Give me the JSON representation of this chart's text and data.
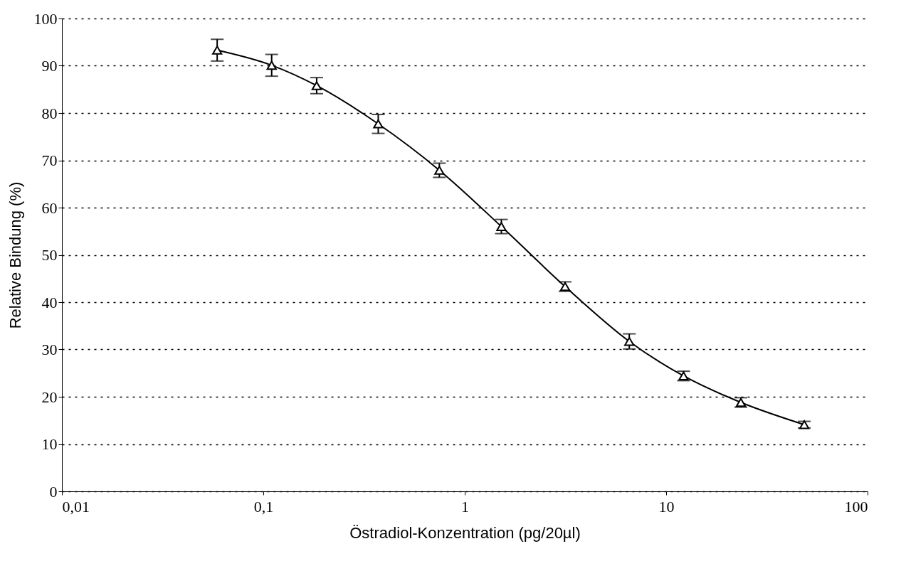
{
  "chart_data": {
    "type": "line",
    "xlabel": "Östradiol-Konzentration (pg/20µl)",
    "ylabel": "Relative Bindung (%)",
    "x": [
      0.059,
      0.11,
      0.184,
      0.372,
      0.748,
      1.52,
      3.15,
      6.56,
      12.2,
      23.5,
      48.5
    ],
    "series": [
      {
        "color": "#000000",
        "values": [
          93.3,
          90.1,
          85.8,
          77.7,
          67.9,
          56.0,
          43.3,
          31.7,
          24.4,
          18.8,
          14.1
        ],
        "errors": [
          2.3,
          2.3,
          1.7,
          2.0,
          1.5,
          1.5,
          1.0,
          1.6,
          1.0,
          1.0,
          0.7
        ]
      }
    ],
    "log": "x",
    "xlim": [
      0.01,
      100
    ],
    "xticks": [
      {
        "value": 0.01,
        "label": "0,01"
      },
      {
        "value": 0.1,
        "label": "0,1"
      },
      1,
      10,
      100
    ],
    "ylim": [
      0,
      100
    ],
    "yticks": [
      0,
      10,
      20,
      30,
      40,
      50,
      60,
      70,
      80,
      90,
      100
    ],
    "grid": "y",
    "marker": "triangle",
    "line_style": "solid"
  }
}
